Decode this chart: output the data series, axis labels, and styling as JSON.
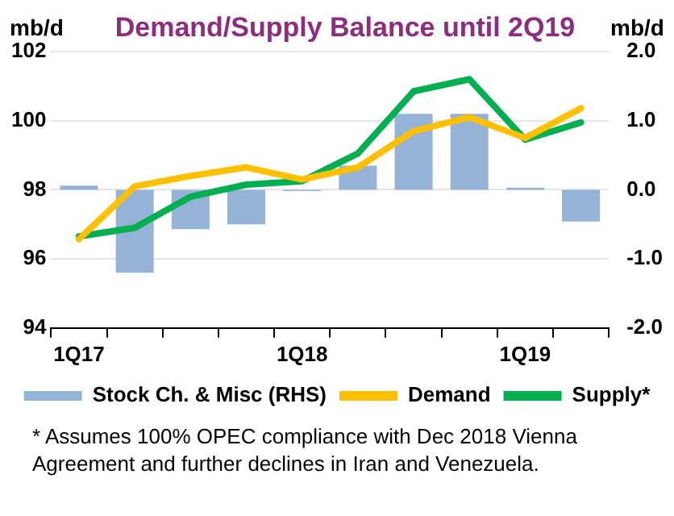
{
  "chart_data": {
    "type": "bar",
    "title": "Demand/Supply Balance until 2Q19",
    "ylabel": "mb/d",
    "y2label": "mb/d",
    "categories": [
      "1Q17",
      null,
      null,
      null,
      "1Q18",
      null,
      null,
      null,
      "1Q19",
      null
    ],
    "series": [
      {
        "name": "Stock Ch. & Misc (RHS)",
        "type": "bar",
        "axis": "y2",
        "color": "#95b3d7",
        "values": [
          0.06,
          -1.2,
          -0.57,
          -0.5,
          -0.02,
          0.35,
          1.1,
          1.1,
          0.03,
          -0.46
        ]
      },
      {
        "name": "Demand",
        "type": "line",
        "color": "#ffc000",
        "values": [
          96.57,
          98.1,
          98.4,
          98.65,
          98.3,
          98.65,
          99.7,
          100.1,
          99.5,
          100.36
        ]
      },
      {
        "name": "Supply*",
        "type": "line",
        "color": "#00b050",
        "values": [
          96.65,
          96.9,
          97.8,
          98.15,
          98.25,
          99.05,
          100.85,
          101.2,
          99.45,
          99.95
        ]
      }
    ],
    "ylim": [
      94,
      102
    ],
    "yticks": [
      94,
      96,
      98,
      100,
      102
    ],
    "y2lim": [
      -2,
      2
    ],
    "y2ticks": [
      {
        "value": -2,
        "label": "-2.0"
      },
      {
        "value": -1,
        "label": "-1.0"
      },
      {
        "value": 0,
        "label": "0.0"
      },
      {
        "value": 1,
        "label": "1.0"
      },
      {
        "value": 2,
        "label": "2.0"
      }
    ],
    "grid": "y",
    "legend": "bottom",
    "marker": "none",
    "line_style": "solid",
    "annotations": [
      "* Assumes 100% OPEC compliance with Dec 2018 Vienna Agreement and further declines in Iran and Venezuela."
    ]
  }
}
